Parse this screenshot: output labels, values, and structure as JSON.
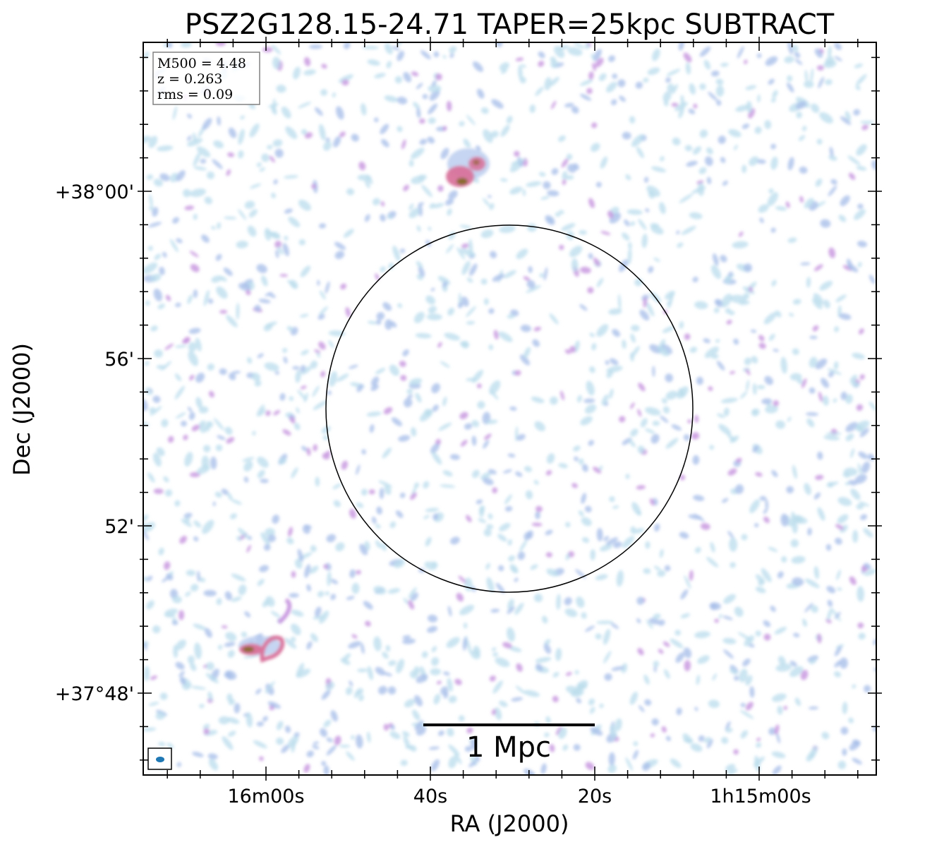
{
  "chart_data": {
    "type": "heatmap",
    "title": "PSZ2G128.15-24.71 TAPER=25kpc SUBTRACT",
    "xlabel": "RA (J2000)",
    "ylabel": "Dec (J2000)",
    "x_ticks": [
      "16m00s",
      "40s",
      "20s",
      "1h15m00s"
    ],
    "y_ticks": [
      "+38°00'",
      "56'",
      "52'",
      "+37°48'"
    ],
    "info_box": [
      "M500 = 4.48",
      "z = 0.263",
      "rms = 0.09"
    ],
    "scale_bar_label": "1 Mpc",
    "colormap_colors": [
      "#b9dcec",
      "#a9bfea",
      "#c99ae0",
      "#d9749c",
      "#8a6a2a"
    ],
    "sources": [
      {
        "name": "north-source",
        "peak": "strong"
      },
      {
        "name": "southwest-source",
        "peak": "strong"
      }
    ],
    "overlays": [
      "R500 circle",
      "beam ellipse",
      "scale bar"
    ]
  }
}
